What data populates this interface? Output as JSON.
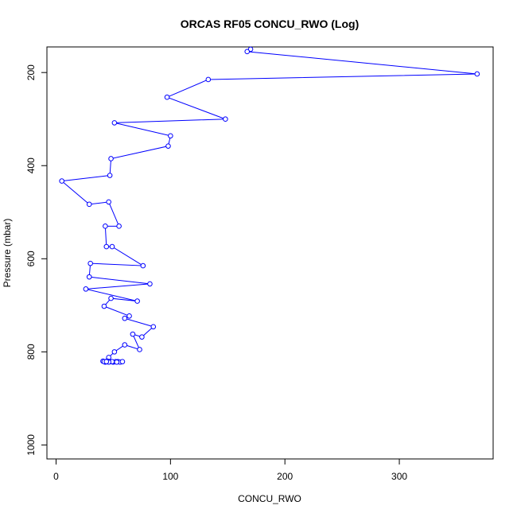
{
  "chart_data": {
    "type": "line",
    "title": "ORCAS RF05 CONCU_RWO (Log)",
    "xlabel": "CONCU_RWO",
    "ylabel": "Pressure (mbar)",
    "xlim": [
      -8,
      382
    ],
    "ylim": [
      1030,
      145
    ],
    "y_reversed": true,
    "xticks": [
      0,
      100,
      200,
      300
    ],
    "yticks": [
      200,
      400,
      600,
      800,
      1000
    ],
    "grid": false,
    "series_color": "#0000ff",
    "points": [
      {
        "x": 170,
        "y": 150
      },
      {
        "x": 167,
        "y": 155
      },
      {
        "x": 368,
        "y": 203
      },
      {
        "x": 133,
        "y": 215
      },
      {
        "x": 97,
        "y": 253
      },
      {
        "x": 148,
        "y": 300
      },
      {
        "x": 51,
        "y": 308
      },
      {
        "x": 100,
        "y": 336
      },
      {
        "x": 98,
        "y": 358
      },
      {
        "x": 48,
        "y": 385
      },
      {
        "x": 47,
        "y": 421
      },
      {
        "x": 5,
        "y": 433
      },
      {
        "x": 29,
        "y": 483
      },
      {
        "x": 46,
        "y": 478
      },
      {
        "x": 55,
        "y": 530
      },
      {
        "x": 43,
        "y": 530
      },
      {
        "x": 44,
        "y": 574
      },
      {
        "x": 49,
        "y": 574
      },
      {
        "x": 76,
        "y": 615
      },
      {
        "x": 30,
        "y": 610
      },
      {
        "x": 29,
        "y": 639
      },
      {
        "x": 82,
        "y": 654
      },
      {
        "x": 26,
        "y": 665
      },
      {
        "x": 71,
        "y": 691
      },
      {
        "x": 48,
        "y": 685
      },
      {
        "x": 42,
        "y": 702
      },
      {
        "x": 64,
        "y": 723
      },
      {
        "x": 60,
        "y": 728
      },
      {
        "x": 85,
        "y": 746
      },
      {
        "x": 75,
        "y": 768
      },
      {
        "x": 67,
        "y": 762
      },
      {
        "x": 73,
        "y": 795
      },
      {
        "x": 60,
        "y": 785
      },
      {
        "x": 51,
        "y": 800
      },
      {
        "x": 46,
        "y": 812
      },
      {
        "x": 41,
        "y": 820
      },
      {
        "x": 43,
        "y": 822
      },
      {
        "x": 45,
        "y": 820
      },
      {
        "x": 48,
        "y": 821
      },
      {
        "x": 50,
        "y": 822
      },
      {
        "x": 52,
        "y": 821
      },
      {
        "x": 54,
        "y": 821
      },
      {
        "x": 56,
        "y": 822
      },
      {
        "x": 58,
        "y": 821
      },
      {
        "x": 53,
        "y": 822
      },
      {
        "x": 49,
        "y": 821
      },
      {
        "x": 46,
        "y": 822
      },
      {
        "x": 42,
        "y": 821
      },
      {
        "x": 44,
        "y": 821
      }
    ]
  }
}
